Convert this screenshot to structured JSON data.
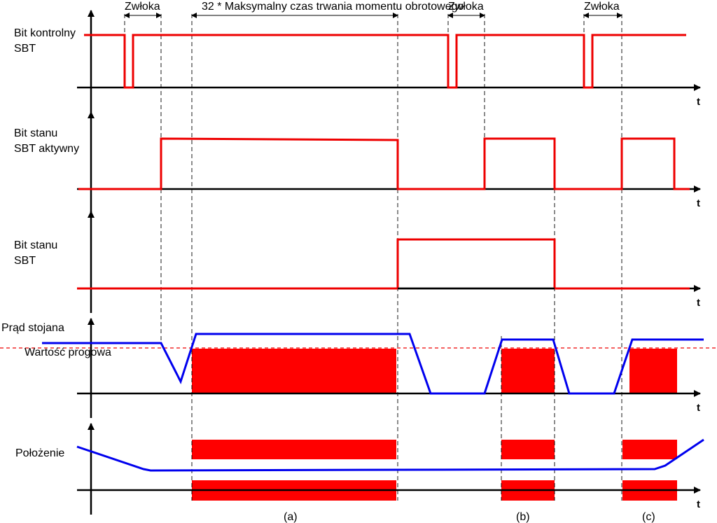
{
  "annotations": {
    "delays": [
      "Zwłoka",
      "Zwłoka",
      "Zwłoka"
    ],
    "duration": "32 * Maksymalny czas trwania momentu obrotowego"
  },
  "signals": [
    {
      "label_lines": [
        "Bit kontrolny",
        "SBT"
      ],
      "axis_label": "t"
    },
    {
      "label_lines": [
        "Bit stanu",
        "SBT aktywny"
      ],
      "axis_label": "t"
    },
    {
      "label_lines": [
        "Bit stanu",
        "SBT"
      ],
      "axis_label": "t"
    },
    {
      "label_lines": [
        "Prąd stojana"
      ],
      "axis_label": "t"
    },
    {
      "label_lines": [
        "Położenie"
      ],
      "axis_label": "t"
    }
  ],
  "threshold_label": "Wartość progowa",
  "phases": [
    "(a)",
    "(b)",
    "(c)"
  ]
}
